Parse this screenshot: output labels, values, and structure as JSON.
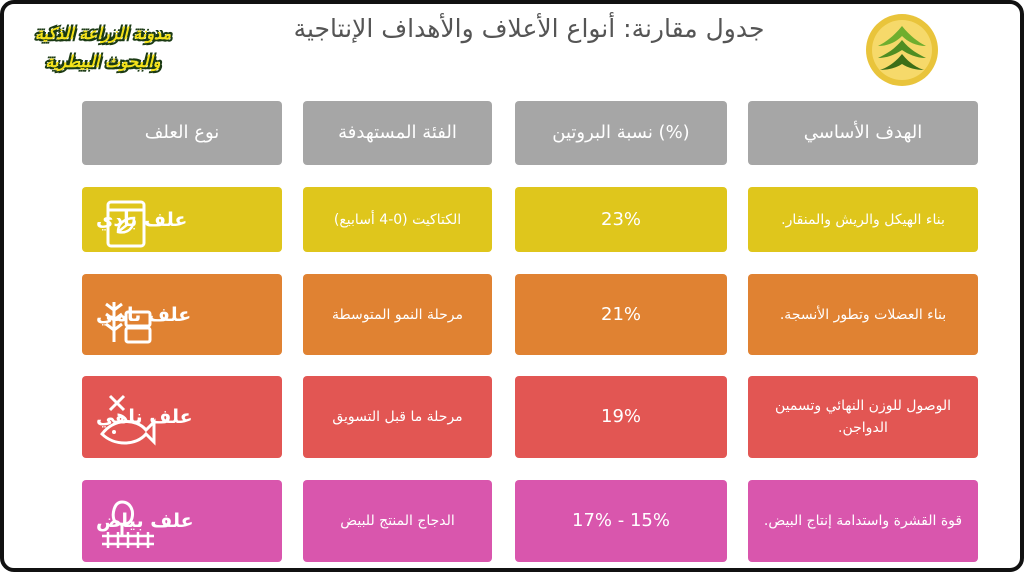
{
  "header": {
    "title": "جدول مقارنة: أنواع الأعلاف والأهداف الإنتاجية",
    "brand": [
      "مدونة الزراعة الذكية",
      "والبحوث البيطرية"
    ]
  },
  "table": {
    "headers": [
      "نوع العلف",
      "الفئة المستهدفة",
      "(%) نسبة البروتين",
      "الهدف الأساسي"
    ],
    "rows": [
      [
        "علف بادي",
        "الكتاكيت (0-4 أسابيع)",
        "23%",
        "بناء الهيكل والريش والمنقار."
      ],
      [
        "علف نامي",
        "مرحلة النمو المتوسطة",
        "21%",
        "بناء العضلات وتطور الأنسجة."
      ],
      [
        "علف ناهي",
        "مرحلة ما قبل التسويق",
        "19%",
        "الوصول للوزن النهائي وتسمين الدواجن."
      ],
      [
        "علف بياض",
        "الدجاج المنتج للبيض",
        "15% - 17%",
        "قوة القشرة واستدامة إنتاج البيض."
      ]
    ]
  }
}
